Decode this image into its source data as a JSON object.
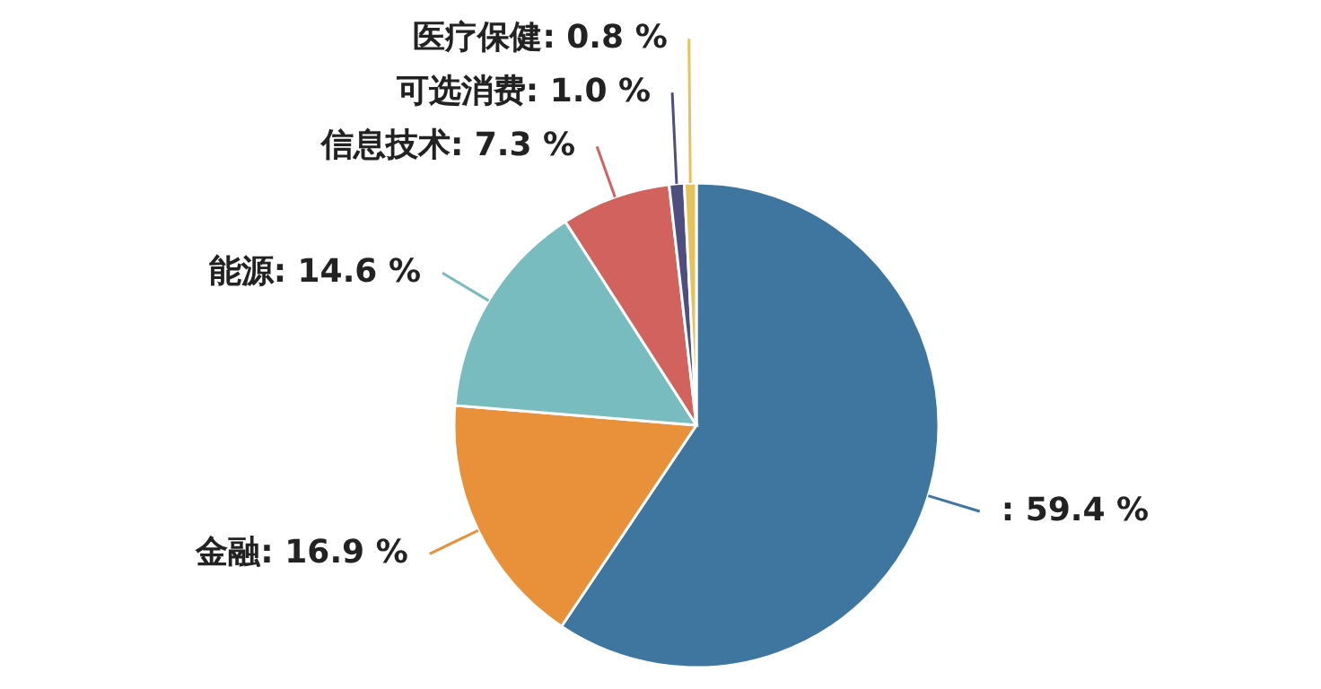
{
  "chart_data": {
    "type": "pie",
    "categories": [
      null,
      "金融",
      "能源",
      "信息技术",
      "可选消费",
      "医疗保健"
    ],
    "values": [
      59.4,
      16.9,
      14.6,
      7.3,
      1.0,
      0.8
    ],
    "colors": [
      "#3e76a0",
      "#e8903a",
      "#78bcbf",
      "#d1625d",
      "#4e4f7f",
      "#e6c25a"
    ],
    "value_labels": [
      ": 59.4 %",
      ": 16.9 %",
      ": 14.6 %",
      ": 7.3 %",
      ": 1.0 %",
      ": 0.8 %"
    ]
  }
}
